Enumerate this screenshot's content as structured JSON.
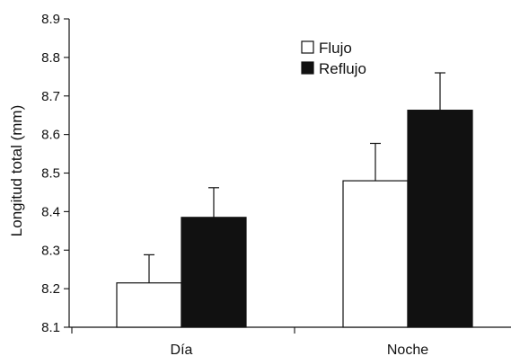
{
  "chart_data": {
    "type": "bar",
    "title": "",
    "xlabel": "",
    "ylabel": "Longitud total (mm)",
    "ylim": [
      8.1,
      8.9
    ],
    "yticks": [
      "8.1",
      "8.2",
      "8.3",
      "8.4",
      "8.5",
      "8.6",
      "8.7",
      "8.8",
      "8.9"
    ],
    "categories": [
      "Día",
      "Noche"
    ],
    "series": [
      {
        "name": "Flujo",
        "values": [
          8.215,
          8.48
        ],
        "error": [
          0.073,
          0.097
        ],
        "color": "#ffffff"
      },
      {
        "name": "Reflujo",
        "values": [
          8.385,
          8.663
        ],
        "error": [
          0.077,
          0.097
        ],
        "color": "#111111"
      }
    ],
    "grid": false,
    "legend_position": "top-center"
  }
}
